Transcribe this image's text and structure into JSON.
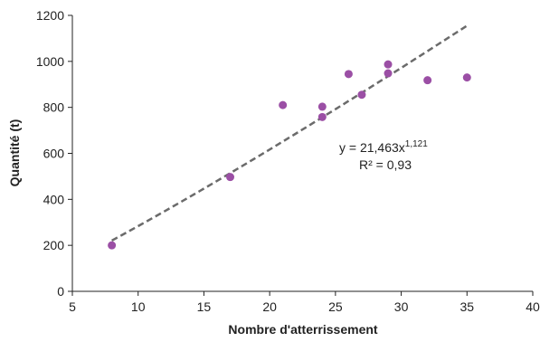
{
  "chart_data": {
    "type": "scatter",
    "title": "",
    "xlabel": "Nombre d'atterrissement",
    "ylabel": "Quantité (t)",
    "xlim": [
      5,
      40
    ],
    "ylim": [
      0,
      1200
    ],
    "xticks": [
      5,
      10,
      15,
      20,
      25,
      30,
      35,
      40
    ],
    "yticks": [
      0,
      200,
      400,
      600,
      800,
      1000,
      1200
    ],
    "grid": false,
    "legend": "none",
    "series": [
      {
        "color": "#9b4fa5",
        "points": [
          {
            "x": 8,
            "y": 200
          },
          {
            "x": 17,
            "y": 497
          },
          {
            "x": 21,
            "y": 810
          },
          {
            "x": 24,
            "y": 758
          },
          {
            "x": 24,
            "y": 803
          },
          {
            "x": 26,
            "y": 945
          },
          {
            "x": 27,
            "y": 855
          },
          {
            "x": 29,
            "y": 948
          },
          {
            "x": 29,
            "y": 987
          },
          {
            "x": 32,
            "y": 918
          },
          {
            "x": 35,
            "y": 930
          }
        ]
      }
    ],
    "trendline": {
      "type": "power",
      "a": 21.463,
      "b": 1.121,
      "x_range": [
        8,
        35
      ],
      "color": "#6b6b6b",
      "style": "dashed"
    },
    "annotations": {
      "equation_prefix": "y = 21,463x",
      "equation_exponent": "1,121",
      "r2": "R² = 0,93"
    }
  }
}
